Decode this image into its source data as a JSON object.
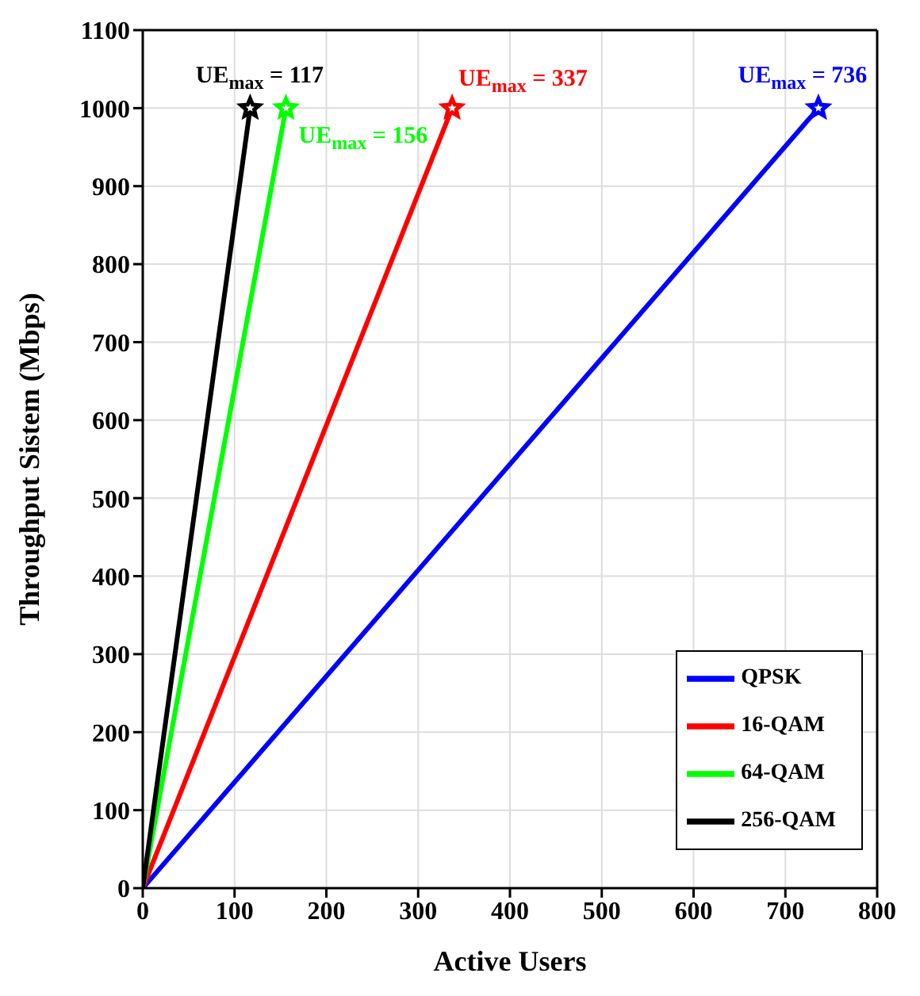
{
  "chart_data": {
    "type": "line",
    "xlabel": "Active Users",
    "ylabel": "Throughput Sistem (Mbps)",
    "xlim": [
      0,
      800
    ],
    "xticks": [
      0,
      100,
      200,
      300,
      400,
      500,
      600,
      700,
      800
    ],
    "ylim": [
      0,
      1100
    ],
    "yticks": [
      0,
      100,
      200,
      300,
      400,
      500,
      600,
      700,
      800,
      900,
      1000,
      1100
    ],
    "grid": true,
    "legend": "bottom right",
    "marker": "star",
    "line_style": "solid",
    "series": [
      {
        "name": "QPSK",
        "color": "#0000ff",
        "x": [
          0,
          736
        ],
        "values": [
          0,
          1000
        ]
      },
      {
        "name": "16-QAM",
        "color": "#ff0000",
        "x": [
          0,
          337
        ],
        "values": [
          0,
          1000
        ]
      },
      {
        "name": "64-QAM",
        "color": "#00ff00",
        "x": [
          0,
          156
        ],
        "values": [
          0,
          1000
        ]
      },
      {
        "name": "256-QAM",
        "color": "#000000",
        "x": [
          0,
          117
        ],
        "values": [
          0,
          1000
        ]
      }
    ],
    "annotations": [
      {
        "text": "UE$_{max}$ = 736",
        "x": 736,
        "y": 1000
      },
      {
        "text": "UE$_{max}$ = 337",
        "x": 337,
        "y": 1000
      },
      {
        "text": "UE$_{max}$ = 156",
        "x": 156,
        "y": 1000
      },
      {
        "text": "UE$_{max}$ = 117",
        "x": 117,
        "y": 1000
      }
    ]
  }
}
